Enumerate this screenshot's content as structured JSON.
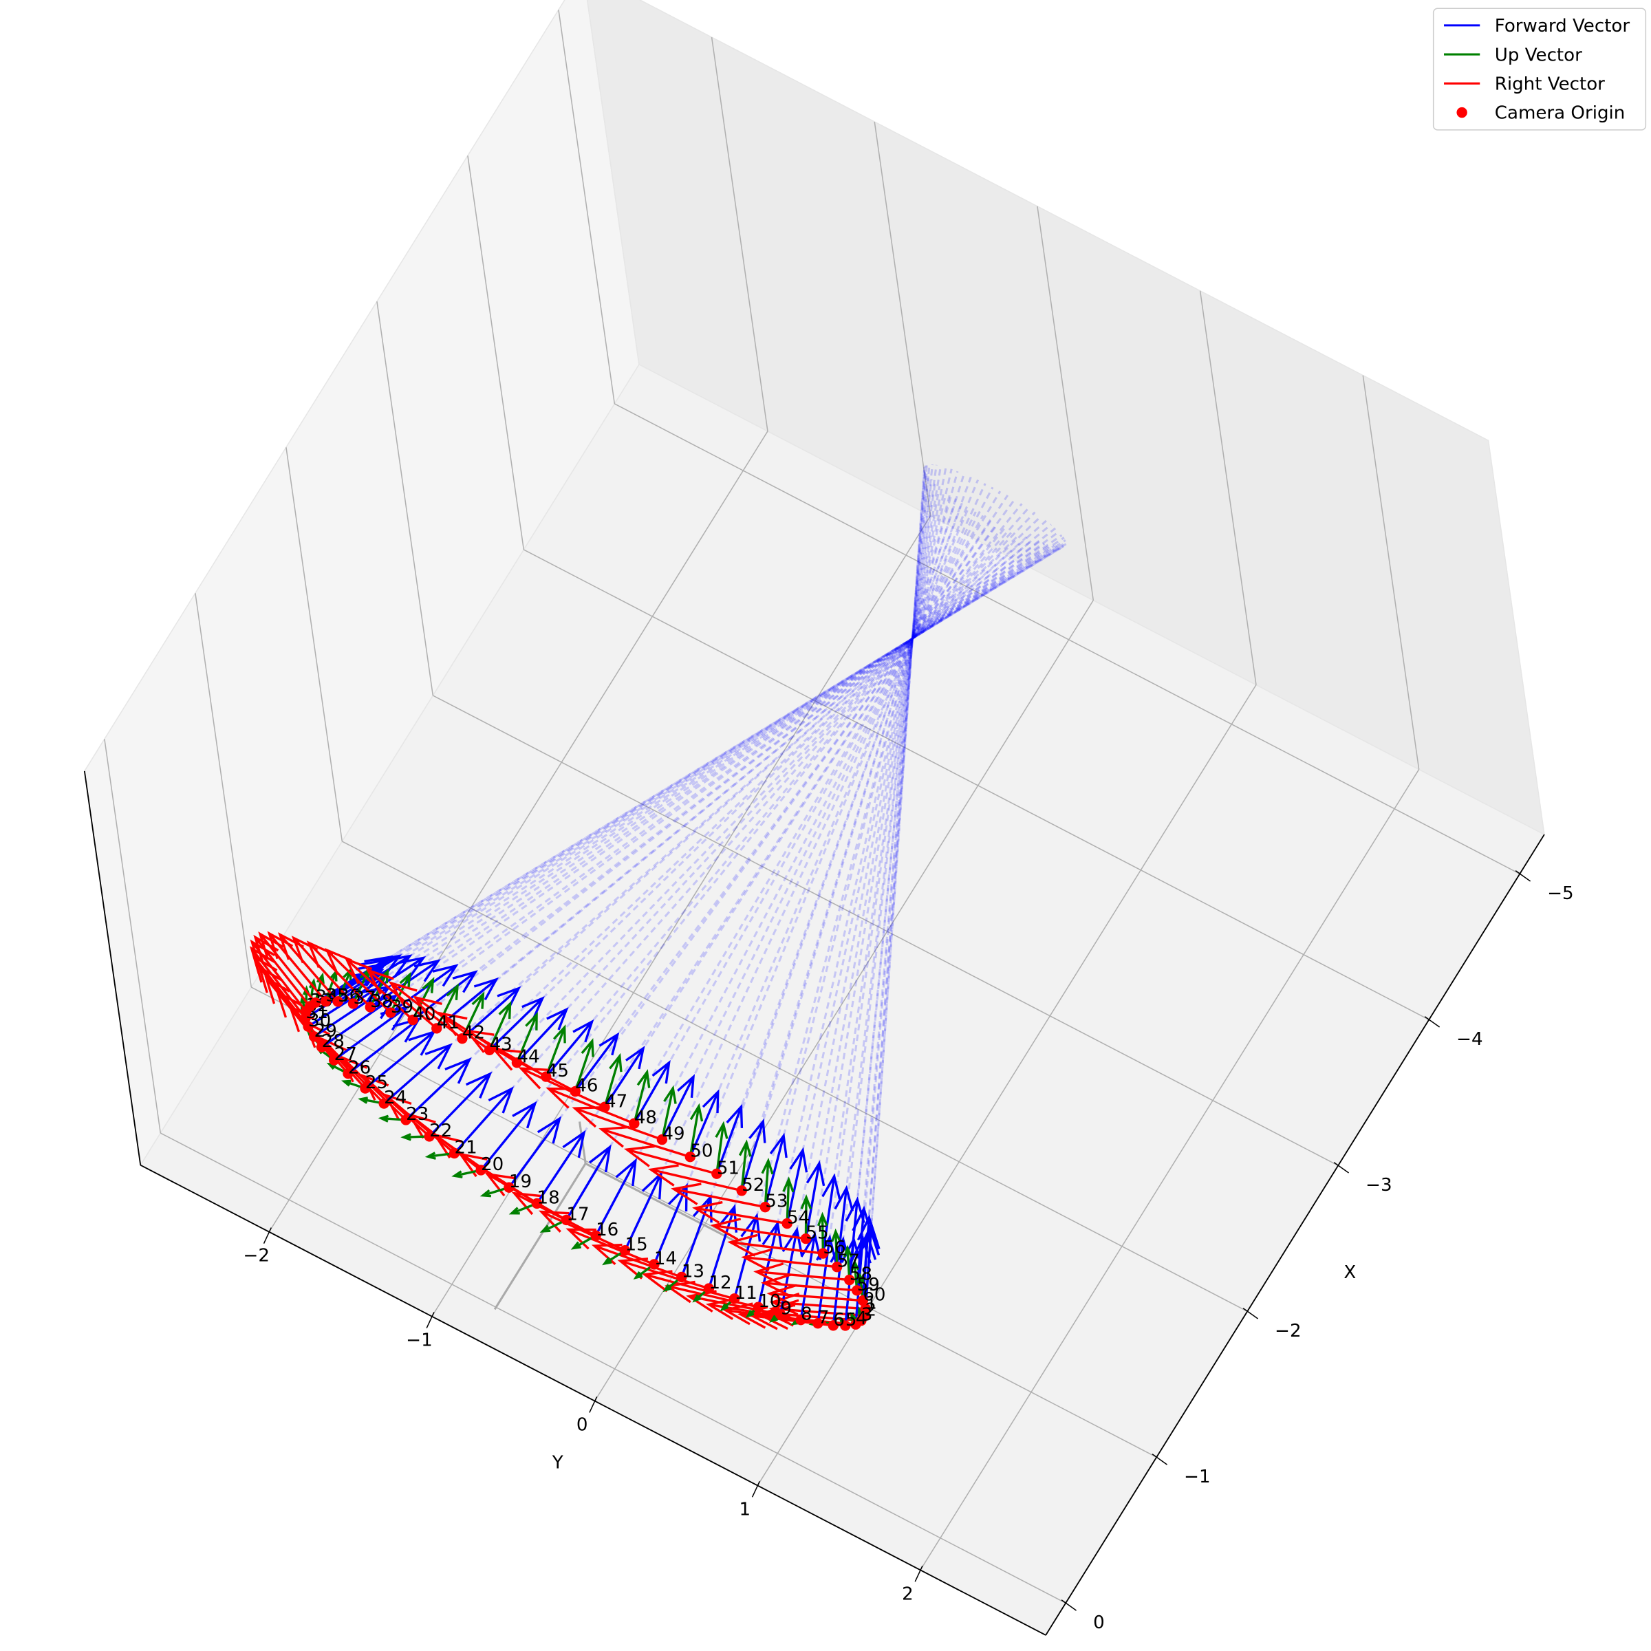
{
  "chart_data": {
    "type": "quiver3d",
    "xlabel": "X",
    "ylabel": "Y",
    "xlim": [
      -5.27,
      0.22
    ],
    "ylim": [
      -2.79,
      2.77
    ],
    "zlim": [
      -4.9,
      4.5
    ],
    "xticks": [
      {
        "value": -5,
        "label": "−5"
      },
      {
        "value": -4,
        "label": "−4"
      },
      {
        "value": -3,
        "label": "−3"
      },
      {
        "value": -2,
        "label": "−2"
      },
      {
        "value": -1,
        "label": "−1"
      },
      0
    ],
    "yticks": [
      {
        "value": -2,
        "label": "−2"
      },
      {
        "value": -1,
        "label": "−1"
      },
      0,
      1,
      2
    ],
    "grid": true,
    "legend_position": "upper right",
    "look_at": [
      -3.6,
      0,
      0
    ],
    "vector_length": 0.5,
    "ray_length": 5,
    "vectors": [
      {
        "name": "Forward Vector",
        "color": "#0000ff"
      },
      {
        "name": "Up Vector",
        "color": "#008000"
      },
      {
        "name": "Right Vector",
        "color": "#ff0000"
      }
    ],
    "series": [
      {
        "name": "Camera Origin",
        "color": "#ff0000",
        "x": [
          0,
          0,
          0,
          0,
          0,
          0,
          0,
          0,
          0,
          0,
          0,
          0,
          0,
          0,
          0,
          0,
          0,
          0,
          0,
          0,
          0,
          0,
          0,
          0,
          0,
          0,
          0,
          0,
          0,
          0,
          0,
          0,
          0,
          0,
          0,
          0,
          0,
          0,
          0,
          0,
          0,
          0,
          0,
          0,
          0,
          0,
          0,
          0,
          0,
          0,
          0,
          0,
          0,
          0,
          0,
          0,
          0,
          0,
          0,
          0
        ],
        "y": [
          1.72,
          1.71,
          1.68,
          1.64,
          1.57,
          1.49,
          1.39,
          1.28,
          1.15,
          1.01,
          0.86,
          0.7,
          0.53,
          0.36,
          0.18,
          0,
          -0.18,
          -0.36,
          -0.53,
          -0.7,
          -0.86,
          -1.01,
          -1.15,
          -1.28,
          -1.39,
          -1.49,
          -1.57,
          -1.64,
          -1.68,
          -1.71,
          -1.72,
          -1.71,
          -1.68,
          -1.64,
          -1.57,
          -1.49,
          -1.39,
          -1.28,
          -1.15,
          -1.01,
          -0.86,
          -0.7,
          -0.53,
          -0.36,
          -0.18,
          0,
          0.18,
          0.36,
          0.53,
          0.7,
          0.86,
          1.01,
          1.15,
          1.28,
          1.39,
          1.49,
          1.57,
          1.64,
          1.68,
          1.71
        ],
        "z": [
          0,
          -0.18,
          -0.36,
          -0.53,
          -0.7,
          -0.86,
          -1.01,
          -1.15,
          -1.28,
          -1.39,
          -1.49,
          -1.57,
          -1.64,
          -1.68,
          -1.71,
          -1.72,
          -1.71,
          -1.68,
          -1.64,
          -1.57,
          -1.49,
          -1.39,
          -1.28,
          -1.15,
          -1.01,
          -0.86,
          -0.7,
          -0.53,
          -0.36,
          -0.18,
          0,
          0.18,
          0.36,
          0.53,
          0.7,
          0.86,
          1.01,
          1.15,
          1.28,
          1.39,
          1.49,
          1.57,
          1.64,
          1.68,
          1.71,
          1.72,
          1.71,
          1.68,
          1.64,
          1.57,
          1.49,
          1.39,
          1.28,
          1.15,
          1.01,
          0.86,
          0.7,
          0.53,
          0.36,
          0.18
        ],
        "labels": [
          1,
          2,
          3,
          4,
          5,
          6,
          7,
          8,
          9,
          10,
          11,
          12,
          13,
          14,
          15,
          16,
          17,
          18,
          19,
          20,
          21,
          22,
          23,
          24,
          25,
          26,
          27,
          28,
          29,
          30,
          31,
          32,
          33,
          34,
          35,
          36,
          37,
          38,
          39,
          40,
          41,
          42,
          43,
          44,
          45,
          46,
          47,
          48,
          49,
          50,
          51,
          52,
          53,
          54,
          55,
          56,
          57,
          58,
          59,
          60
        ]
      }
    ]
  }
}
